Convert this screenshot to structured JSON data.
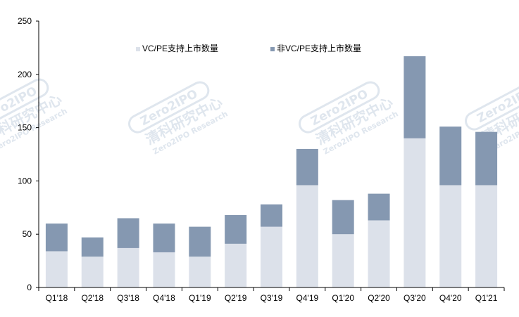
{
  "chart_data": {
    "type": "bar",
    "stacked": true,
    "title": "",
    "xlabel": "",
    "ylabel": "",
    "ylim": [
      0,
      250
    ],
    "yticks": [
      0,
      50,
      100,
      150,
      200,
      250
    ],
    "grid": false,
    "legend_position": "top-left",
    "categories": [
      "Q1'18",
      "Q2'18",
      "Q3'18",
      "Q4'18",
      "Q1'19",
      "Q2'19",
      "Q3'19",
      "Q4'19",
      "Q1'20",
      "Q2'20",
      "Q3'20",
      "Q4'20",
      "Q1'21"
    ],
    "series": [
      {
        "name": "VC/PE支持上市数量",
        "color": "#dce1ea",
        "values": [
          34,
          29,
          37,
          33,
          29,
          41,
          57,
          96,
          50,
          63,
          140,
          96,
          96
        ]
      },
      {
        "name": "非VC/PE支持上市数量",
        "color": "#8598b1",
        "values": [
          26,
          18,
          28,
          27,
          28,
          27,
          21,
          34,
          32,
          25,
          77,
          55,
          50
        ]
      }
    ]
  },
  "watermark": {
    "badge_text": "Zero2IPO",
    "cn_text": "清科研究中心",
    "en_text": "Zero2IPO Research"
  },
  "colors": {
    "axis": "#000000",
    "watermark": "#dfe6ee"
  }
}
